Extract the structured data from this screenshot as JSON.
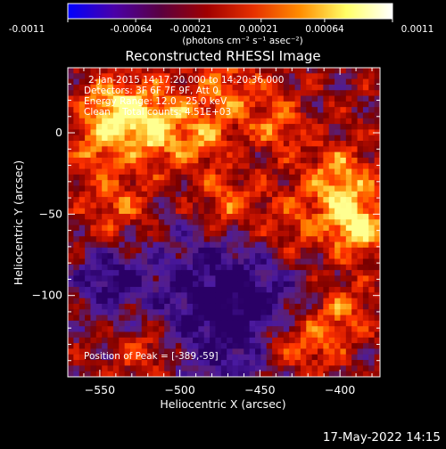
{
  "colorbar": {
    "tick_labels": [
      "-0.0011",
      "-0.00064",
      "-0.00021",
      "0.00021",
      "0.00064",
      "0.0011"
    ],
    "tick_values": [
      -0.0011,
      -0.00064,
      -0.00021,
      0.00021,
      0.00064,
      0.0011
    ],
    "unit_label": "(photons cm⁻² s⁻¹ asec⁻²)",
    "range": [
      -0.0011,
      0.0011
    ],
    "colors": [
      "#0000ff",
      "#4a00a8",
      "#5a0040",
      "#a00000",
      "#e63000",
      "#ff8c00",
      "#ffff66",
      "#ffffff"
    ]
  },
  "chart_data": {
    "type": "heatmap",
    "title": "Reconstructed RHESSI Image",
    "xlabel": "Heliocentric X (arcsec)",
    "ylabel": "Heliocentric Y (arcsec)",
    "xlim": [
      -570,
      -375
    ],
    "ylim": [
      -150,
      40
    ],
    "x_ticks": [
      -550,
      -500,
      -450,
      -400
    ],
    "y_ticks": [
      0,
      -50,
      -100
    ],
    "annotations": [
      "2-Jan-2015 14:17:20.000 to 14:20:36.000",
      "Detectors: 3F 6F 7F 9F, Att 0",
      "Energy Range: 12.0 - 25.0 keV",
      "Clean    Total counts: 4.51E+03"
    ],
    "peak_label": "Position of Peak = [-389,-59]",
    "peak": [
      -389,
      -59
    ]
  },
  "footer": {
    "timestamp": "17-May-2022 14:15"
  }
}
